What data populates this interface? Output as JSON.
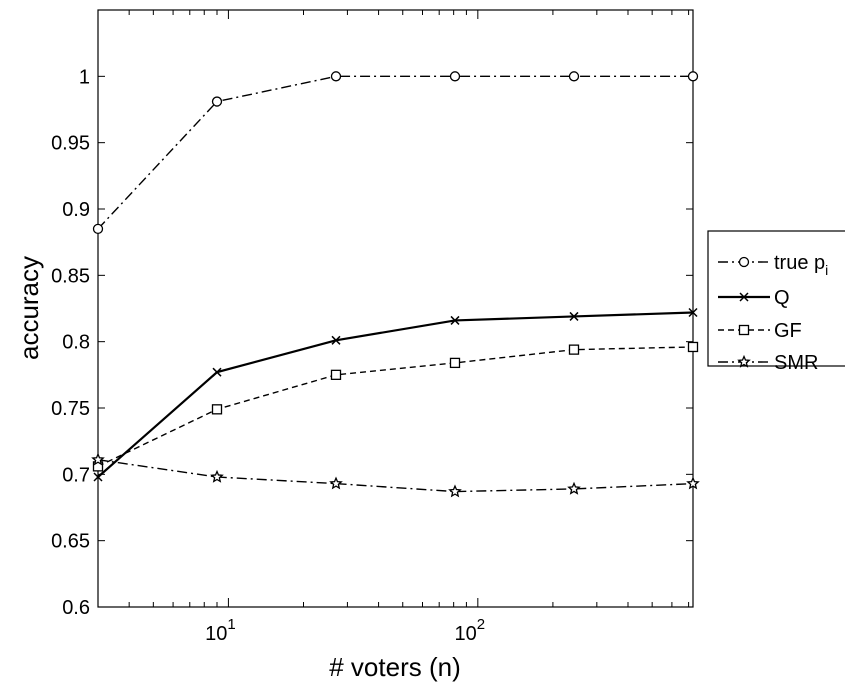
{
  "chart_data": {
    "type": "line",
    "title": "",
    "xlabel": "# voters (n)",
    "ylabel": "accuracy",
    "xscale": "log",
    "xlim": [
      3,
      729
    ],
    "ylim": [
      0.6,
      1.05
    ],
    "grid": false,
    "legend_position": "outside-right",
    "x": [
      3,
      9,
      27,
      81,
      243,
      729
    ],
    "x_ticks": [
      {
        "value": 10,
        "base": "10",
        "exp": "1"
      },
      {
        "value": 100,
        "base": "10",
        "exp": "2"
      }
    ],
    "y_ticks": [
      {
        "value": 0.6,
        "label": "0.6"
      },
      {
        "value": 0.65,
        "label": "0.65"
      },
      {
        "value": 0.7,
        "label": "0.7"
      },
      {
        "value": 0.75,
        "label": "0.75"
      },
      {
        "value": 0.8,
        "label": "0.8"
      },
      {
        "value": 0.85,
        "label": "0.85"
      },
      {
        "value": 0.9,
        "label": "0.9"
      },
      {
        "value": 0.95,
        "label": "0.95"
      },
      {
        "value": 1.0,
        "label": "1"
      }
    ],
    "series": [
      {
        "name": "true p",
        "name_sub": "i",
        "marker": "circle",
        "dash": "10,4,2,4",
        "values": [
          0.885,
          0.981,
          1.0,
          1.0,
          1.0,
          1.0
        ]
      },
      {
        "name": "Q",
        "marker": "x",
        "dash": "",
        "values": [
          0.698,
          0.777,
          0.801,
          0.816,
          0.819,
          0.822
        ]
      },
      {
        "name": "GF",
        "marker": "square",
        "dash": "6,4",
        "values": [
          0.706,
          0.749,
          0.775,
          0.784,
          0.794,
          0.796
        ]
      },
      {
        "name": "SMR",
        "marker": "star",
        "dash": "10,4,2,4",
        "values": [
          0.711,
          0.698,
          0.693,
          0.687,
          0.689,
          0.693
        ]
      }
    ]
  }
}
